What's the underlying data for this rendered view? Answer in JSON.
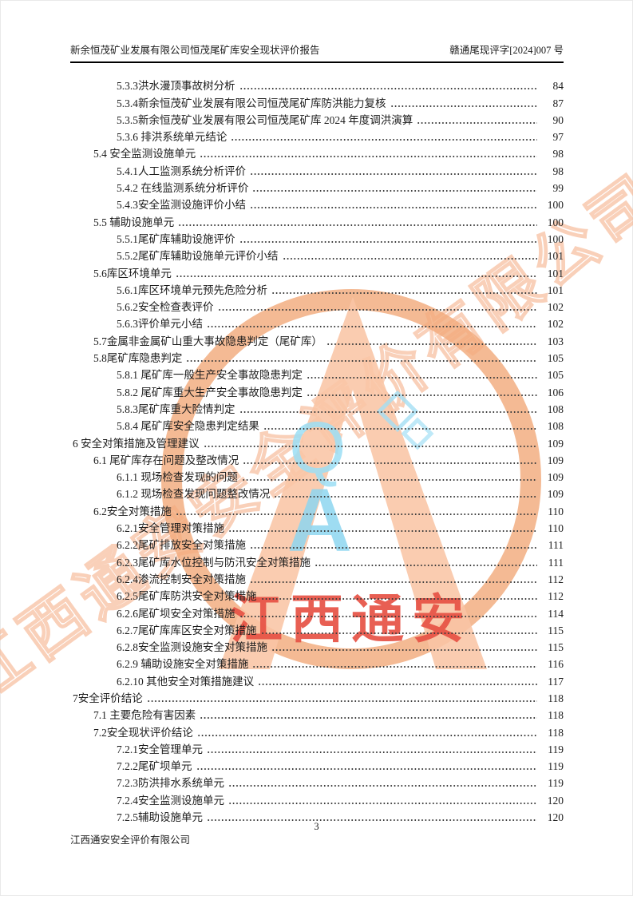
{
  "header": {
    "title_left": "新余恒茂矿业发展有限公司恒茂尾矿库安全现状评价报告",
    "doc_number_right": "赣通尾现评字[2024]007 号"
  },
  "toc": {
    "entries": [
      {
        "level": 3,
        "label": "5.3.3洪水漫顶事故树分析",
        "page": "84"
      },
      {
        "level": 3,
        "label": "5.3.4新余恒茂矿业发展有限公司恒茂尾矿库防洪能力复核",
        "page": "87"
      },
      {
        "level": 3,
        "label": "5.3.5新余恒茂矿业发展有限公司恒茂尾矿库 2024 年度调洪演算",
        "page": "90"
      },
      {
        "level": 3,
        "label": "5.3.6 排洪系统单元结论",
        "page": "97"
      },
      {
        "level": 2,
        "label": "5.4 安全监测设施单元",
        "page": "98"
      },
      {
        "level": 3,
        "label": "5.4.1人工监测系统分析评价",
        "page": "98"
      },
      {
        "level": 3,
        "label": "5.4.2 在线监测系统分析评价",
        "page": "99"
      },
      {
        "level": 3,
        "label": "5.4.3安全监测设施评价小结",
        "page": "100"
      },
      {
        "level": 2,
        "label": "5.5 辅助设施单元",
        "page": "100"
      },
      {
        "level": 3,
        "label": "5.5.1尾矿库辅助设施评价",
        "page": "100"
      },
      {
        "level": 3,
        "label": "5.5.2尾矿库辅助设施单元评价小结",
        "page": "101"
      },
      {
        "level": 2,
        "label": "5.6库区环境单元",
        "page": "101"
      },
      {
        "level": 3,
        "label": "5.6.1库区环境单元预先危险分析",
        "page": "101"
      },
      {
        "level": 3,
        "label": "5.6.2安全检查表评价",
        "page": "102"
      },
      {
        "level": 3,
        "label": "5.6.3评价单元小结",
        "page": "102"
      },
      {
        "level": 2,
        "label": "5.7金属非金属矿山重大事故隐患判定（尾矿库）",
        "page": "103"
      },
      {
        "level": 2,
        "label": "5.8尾矿库隐患判定",
        "page": "105"
      },
      {
        "level": 3,
        "label": "5.8.1 尾矿库一般生产安全事故隐患判定",
        "page": "105"
      },
      {
        "level": 3,
        "label": "5.8.2 尾矿库重大生产安全事故隐患判定",
        "page": "106"
      },
      {
        "level": 3,
        "label": "5.8.3尾矿库重大险情判定",
        "page": "108"
      },
      {
        "level": 3,
        "label": "5.8.4 尾矿库安全隐患判定结果",
        "page": "108"
      },
      {
        "level": 1,
        "label": "6 安全对策措施及管理建议",
        "page": "109"
      },
      {
        "level": 2,
        "label": "6.1 尾矿库存在问题及整改情况",
        "page": "109"
      },
      {
        "level": 3,
        "label": "6.1.1 现场检查发现的问题",
        "page": "109"
      },
      {
        "level": 3,
        "label": "6.1.2 现场检查发现问题整改情况",
        "page": "109"
      },
      {
        "level": 2,
        "label": "6.2安全对策措施",
        "page": "110"
      },
      {
        "level": 3,
        "label": "6.2.1安全管理对策措施",
        "page": "110"
      },
      {
        "level": 3,
        "label": "6.2.2尾矿排放安全对策措施",
        "page": "111"
      },
      {
        "level": 3,
        "label": "6.2.3尾矿库水位控制与防汛安全对策措施",
        "page": "111"
      },
      {
        "level": 3,
        "label": "6.2.4渗流控制安全对策措施",
        "page": "112"
      },
      {
        "level": 3,
        "label": "6.2.5尾矿库防洪安全对策措施",
        "page": "112"
      },
      {
        "level": 3,
        "label": "6.2.6尾矿坝安全对策措施",
        "page": "114"
      },
      {
        "level": 3,
        "label": "6.2.7尾矿库库区安全对策措施",
        "page": "115"
      },
      {
        "level": 3,
        "label": "6.2.8安全监测设施安全对策措施",
        "page": "115"
      },
      {
        "level": 3,
        "label": "6.2.9 辅助设施安全对策措施",
        "page": "116"
      },
      {
        "level": 3,
        "label": "6.2.10 其他安全对策措施建议",
        "page": "117"
      },
      {
        "level": 1,
        "label": "7安全评价结论",
        "page": "118"
      },
      {
        "level": 2,
        "label": "7.1 主要危险有害因素",
        "page": "118"
      },
      {
        "level": 2,
        "label": "7.2安全现状评价结论",
        "page": "118"
      },
      {
        "level": 3,
        "label": "7.2.1安全管理单元",
        "page": "119"
      },
      {
        "level": 3,
        "label": "7.2.2尾矿坝单元",
        "page": "119"
      },
      {
        "level": 3,
        "label": "7.2.3防洪排水系统单元",
        "page": "119"
      },
      {
        "level": 3,
        "label": "7.2.4安全监测设施单元",
        "page": "120"
      },
      {
        "level": 3,
        "label": "7.2.5辅助设施单元",
        "page": "120"
      }
    ]
  },
  "footer": {
    "company": "江西通安安全评价有限公司",
    "page_number": "3"
  },
  "watermark": {
    "red_text": "江西通安",
    "diagonal_text": "江西通安安全评价有限公司",
    "letter_q": "Q",
    "letter_a": "A",
    "colors": {
      "ring_orange": "#ef9a63",
      "glyph_peach": "#f8bd98",
      "outline_peach": "#f6b794",
      "light_blue": "#7ed0ee",
      "red": "#e33a2b"
    }
  }
}
